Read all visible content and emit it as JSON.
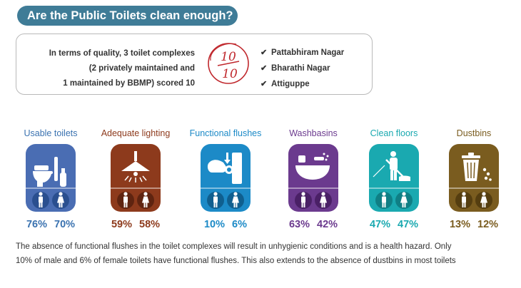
{
  "header": {
    "title": "Are the Public Toilets clean enough?"
  },
  "summary": {
    "text_lines": [
      "In terms of quality, 3 toilet complexes",
      "(2 privately maintained and",
      "1 maintained by BBMP) scored 10"
    ],
    "score_top": "10",
    "score_bottom": "10",
    "places": [
      "Pattabhiram Nagar",
      "Bharathi Nagar",
      "Attiguppe"
    ]
  },
  "categories": [
    {
      "label": "Usable toilets",
      "male": "76%",
      "female": "70%",
      "color": "#4a6db3",
      "icon": "toilet-icon"
    },
    {
      "label": "Adequate lighting",
      "male": "59%",
      "female": "58%",
      "color": "#8d3a1c",
      "icon": "lamp-icon"
    },
    {
      "label": "Functional flushes",
      "male": "10%",
      "female": "6%",
      "color": "#1c8ac7",
      "icon": "flush-icon"
    },
    {
      "label": "Washbasins",
      "male": "63%",
      "female": "42%",
      "color": "#6b3a8e",
      "icon": "washbasin-icon"
    },
    {
      "label": "Clean floors",
      "male": "47%",
      "female": "47%",
      "color": "#1aa9b0",
      "icon": "mop-icon"
    },
    {
      "label": "Dustbins",
      "male": "13%",
      "female": "12%",
      "color": "#7a5c1f",
      "icon": "dustbin-icon"
    }
  ],
  "footnote": {
    "lines": [
      "The absence of functional flushes in the toilet complexes will result in unhygienic conditions and is a health hazard. Only",
      "10% of male and 6% of female toilets have functional flushes. This also extends to the absence of dustbins in most toilets"
    ]
  }
}
